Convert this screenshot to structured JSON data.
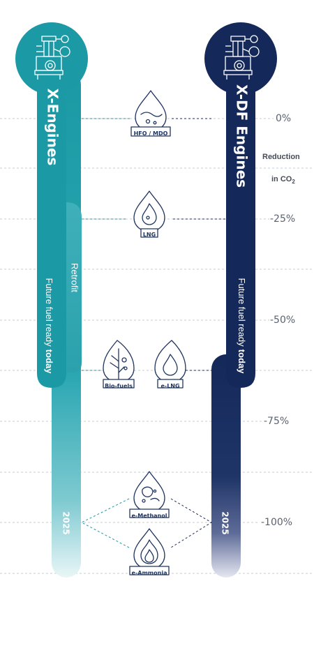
{
  "columns": {
    "x_engines": {
      "title": "X-Engines",
      "retrofit": "Retrofit",
      "future_fuel": "Future fuel ready",
      "future_fuel_emph": "today",
      "year": "2025"
    },
    "xdf_engines": {
      "title": "X-DF Engines",
      "future_fuel": "Future fuel ready",
      "future_fuel_emph": "today",
      "year": "2025"
    }
  },
  "reduction": {
    "label_line1": "Reduction",
    "label_line2": "in CO",
    "label_sub": "2"
  },
  "levels": [
    "0%",
    "-25%",
    "-50%",
    "-75%",
    "-100%"
  ],
  "fuels": {
    "hfo": "HFO / MDO",
    "lng": "LNG",
    "biofuels": "Bio-fuels",
    "elng": "e-LNG",
    "emethanol": "e-Methanol",
    "eammonia": "e-Ammonia"
  },
  "colors": {
    "teal": "#1b9aa5",
    "teal_light": "#c4e7ea",
    "navy": "#15285a",
    "navy_light": "#c9cde0",
    "icon_stroke": "#1f3560",
    "grid": "#c7cbd2"
  }
}
